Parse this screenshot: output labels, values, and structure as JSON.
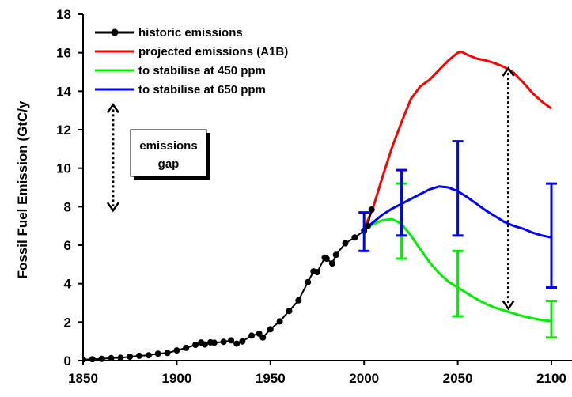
{
  "chart_data": {
    "type": "line",
    "title": "",
    "xlabel": "",
    "ylabel": "Fossil Fuel Emission (GtC/y",
    "xlim": [
      1850,
      2100
    ],
    "ylim": [
      0,
      18
    ],
    "xticks": [
      "1850",
      "1900",
      "1950",
      "2000",
      "2050",
      "2100"
    ],
    "yticks": [
      "0",
      "2",
      "4",
      "6",
      "8",
      "10",
      "12",
      "14",
      "16",
      "18"
    ],
    "grid": false,
    "legend_position": "top-left",
    "series": [
      {
        "name": "historic emissions",
        "color": "#000000",
        "marker": "circle",
        "x": [
          1850,
          1855,
          1860,
          1865,
          1870,
          1875,
          1880,
          1885,
          1890,
          1895,
          1900,
          1905,
          1910,
          1913,
          1915,
          1918,
          1920,
          1925,
          1929,
          1932,
          1935,
          1940,
          1944,
          1946,
          1950,
          1955,
          1960,
          1965,
          1970,
          1973,
          1975,
          1979,
          1980,
          1983,
          1985,
          1990,
          1995,
          2000,
          2002,
          2004
        ],
        "values": [
          0.05,
          0.07,
          0.09,
          0.13,
          0.15,
          0.2,
          0.25,
          0.28,
          0.36,
          0.4,
          0.53,
          0.66,
          0.82,
          0.94,
          0.84,
          0.95,
          0.93,
          0.98,
          1.05,
          0.88,
          1.0,
          1.3,
          1.4,
          1.2,
          1.63,
          2.04,
          2.58,
          3.13,
          4.08,
          4.64,
          4.6,
          5.35,
          5.3,
          5.05,
          5.5,
          6.1,
          6.4,
          6.75,
          7.0,
          7.85
        ]
      },
      {
        "name": "projected emissions (A1B)",
        "color": "#ff0000",
        "x": [
          2000,
          2005,
          2010,
          2015,
          2020,
          2025,
          2030,
          2035,
          2040,
          2045,
          2050,
          2052,
          2055,
          2060,
          2065,
          2070,
          2075,
          2080,
          2085,
          2090,
          2095,
          2100
        ],
        "values": [
          6.8,
          8.0,
          9.6,
          11.1,
          12.4,
          13.6,
          14.25,
          14.6,
          15.1,
          15.6,
          16.0,
          16.05,
          15.9,
          15.7,
          15.6,
          15.45,
          15.25,
          14.95,
          14.45,
          13.9,
          13.45,
          13.1
        ]
      },
      {
        "name": "to stabilise at 450 ppm",
        "color": "#00ee00",
        "x": [
          2000,
          2005,
          2010,
          2015,
          2020,
          2025,
          2030,
          2035,
          2040,
          2045,
          2050,
          2055,
          2060,
          2065,
          2070,
          2075,
          2080,
          2085,
          2090,
          2095,
          2100
        ],
        "values": [
          6.8,
          7.1,
          7.3,
          7.35,
          7.1,
          6.5,
          5.8,
          5.1,
          4.55,
          4.1,
          3.8,
          3.5,
          3.2,
          2.95,
          2.75,
          2.6,
          2.45,
          2.3,
          2.2,
          2.1,
          2.05
        ]
      },
      {
        "name": "to stabilise at 650 ppm",
        "color": "#0000ff",
        "x": [
          2000,
          2005,
          2010,
          2015,
          2020,
          2025,
          2030,
          2035,
          2040,
          2045,
          2050,
          2055,
          2060,
          2065,
          2070,
          2075,
          2080,
          2085,
          2090,
          2095,
          2100
        ],
        "values": [
          6.8,
          7.2,
          7.6,
          7.9,
          8.15,
          8.4,
          8.65,
          8.9,
          9.05,
          9.0,
          8.8,
          8.5,
          8.15,
          7.8,
          7.5,
          7.2,
          7.0,
          6.85,
          6.65,
          6.5,
          6.4
        ]
      }
    ],
    "error_bars": [
      {
        "series": "to stabilise at 450 ppm",
        "color": "#00ee00",
        "x": 2020,
        "low": 5.3,
        "high": 9.2
      },
      {
        "series": "to stabilise at 450 ppm",
        "color": "#00ee00",
        "x": 2050,
        "low": 2.3,
        "high": 5.7
      },
      {
        "series": "to stabilise at 450 ppm",
        "color": "#00ee00",
        "x": 2100,
        "low": 1.2,
        "high": 3.1
      },
      {
        "series": "to stabilise at 650 ppm",
        "color": "#0000ff",
        "x": 2000,
        "low": 5.7,
        "high": 7.7
      },
      {
        "series": "to stabilise at 650 ppm",
        "color": "#0000ff",
        "x": 2020,
        "low": 6.5,
        "high": 9.9
      },
      {
        "series": "to stabilise at 650 ppm",
        "color": "#0000ff",
        "x": 2050,
        "low": 6.5,
        "high": 11.4
      },
      {
        "series": "to stabilise at 650 ppm",
        "color": "#0000ff",
        "x": 2100,
        "low": 3.8,
        "high": 9.2
      }
    ],
    "annotations": {
      "emissions_gap_label": [
        "emissions",
        "gap"
      ],
      "legend_key_arrow": {
        "x": 1866,
        "low": 7.8,
        "high": 13.3
      },
      "gap_arrow": {
        "x": 2077,
        "low": 2.7,
        "high": 15.2
      }
    }
  }
}
